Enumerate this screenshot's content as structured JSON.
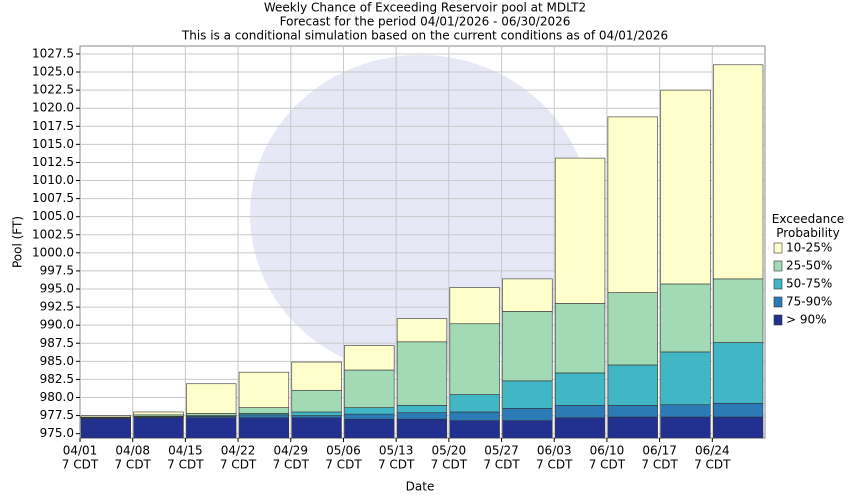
{
  "chart_data": {
    "type": "percentile_band",
    "title": "Weekly Chance of Exceeding Reservoir pool at MDLT2",
    "subtitle": "Forecast for the period 04/01/2026 - 06/30/2026",
    "note": "This is a conditional simulation based on the current conditions as of 04/01/2026",
    "x_label": "Date",
    "y_label": "Pool (FT)",
    "legend_title": "Exceedance Probability",
    "legend_position": "right",
    "grid": true,
    "categories": [
      "04/01",
      "04/08",
      "04/15",
      "04/22",
      "04/29",
      "05/06",
      "05/13",
      "05/20",
      "05/27",
      "06/03",
      "06/10",
      "06/17",
      "06/24"
    ],
    "x_tick_sublabel": "7 CDT",
    "ylim": [
      974.4,
      1028.6
    ],
    "yticks": [
      {
        "value": 975,
        "label": "975.0"
      },
      977.5,
      {
        "value": 980,
        "label": "980.0"
      },
      982.5,
      {
        "value": 985,
        "label": "985.0"
      },
      987.5,
      {
        "value": 990,
        "label": "990.0"
      },
      992.5,
      {
        "value": 995,
        "label": "995.0"
      },
      997.5,
      {
        "value": 1000,
        "label": "1000.0"
      },
      1002.5,
      {
        "value": 1005,
        "label": "1005.0"
      },
      1007.5,
      {
        "value": 1010,
        "label": "1010.0"
      },
      1012.5,
      {
        "value": 1015,
        "label": "1015.0"
      },
      1017.5,
      {
        "value": 1020,
        "label": "1020.0"
      },
      1022.5,
      {
        "value": 1025,
        "label": "1025.0"
      },
      1027.5
    ],
    "series": [
      {
        "name": "> 90%",
        "color": "#22318f",
        "values": [
          977.1,
          977.2,
          977.2,
          977.2,
          977.2,
          977.0,
          977.0,
          976.8,
          976.8,
          977.2,
          977.3,
          977.3,
          977.3
        ]
      },
      {
        "name": "75-90%",
        "color": "#2c7bb6",
        "values": [
          977.2,
          977.3,
          977.4,
          977.6,
          977.5,
          977.7,
          977.9,
          978.0,
          978.5,
          978.9,
          978.9,
          979.0,
          979.2
        ]
      },
      {
        "name": "50-75%",
        "color": "#41b6c4",
        "values": [
          977.3,
          977.4,
          977.5,
          977.8,
          978.0,
          978.6,
          978.9,
          980.4,
          982.3,
          983.4,
          984.5,
          986.3,
          987.6
        ]
      },
      {
        "name": "25-50%",
        "color": "#a1dab4",
        "values": [
          977.3,
          977.6,
          977.8,
          978.6,
          981.0,
          983.8,
          987.7,
          990.2,
          991.9,
          993.0,
          994.5,
          995.7,
          996.4
        ]
      },
      {
        "name": "10-25%",
        "color": "#ffffcc",
        "values": [
          977.5,
          978.0,
          981.9,
          983.5,
          984.9,
          987.2,
          990.9,
          995.2,
          996.4,
          1013.1,
          1018.8,
          1022.5,
          1026.0
        ]
      }
    ]
  }
}
